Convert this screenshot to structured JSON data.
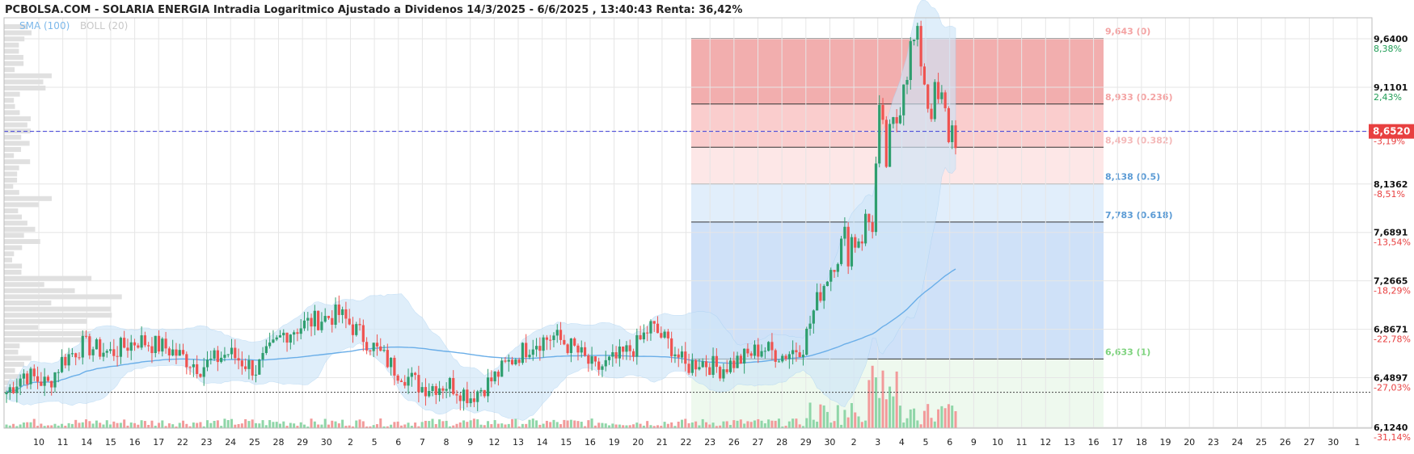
{
  "header": {
    "title": "PCBOLSA.COM - SOLARIA ENERGIA Intradia Logaritmico Ajustado a Dividenos 14/3/2025 - 6/6/2025 , 13:40:43 Renta: 36,42%",
    "legend_sma": "SMA (100)",
    "legend_boll": "BOLL (20)"
  },
  "colors": {
    "up": "#2e9e6e",
    "down": "#ef5350",
    "sma": "#6aaee8",
    "boll_fill": "#cfe6f8",
    "grid": "#e6e6e6",
    "last_price": "#e84040"
  },
  "chart_data": {
    "type": "candlestick",
    "scale": "log",
    "ylim": [
      6.05,
      9.72
    ],
    "x_labels": [
      "10",
      "11",
      "14",
      "15",
      "16",
      "17",
      "22",
      "23",
      "24",
      "25",
      "28",
      "29",
      "30",
      "2",
      "5",
      "6",
      "7",
      "8",
      "9",
      "12",
      "13",
      "14",
      "15",
      "16",
      "19",
      "20",
      "21",
      "22",
      "23",
      "26",
      "27",
      "28",
      "29",
      "30",
      "2",
      "3",
      "4",
      "5",
      "6",
      "9",
      "10",
      "11",
      "12",
      "13",
      "16",
      "17",
      "18",
      "19",
      "20",
      "23",
      "24",
      "25",
      "26",
      "27",
      "30",
      "1"
    ],
    "price_ticks": [
      {
        "price": 9.64,
        "label": "9,6400",
        "pct": "8,38%",
        "pct_color": "#1f9d55"
      },
      {
        "price": 9.1101,
        "label": "9,1101",
        "pct": "2,43%",
        "pct_color": "#1f9d55"
      },
      {
        "price": 8.652,
        "label": "",
        "pct": "-3,19%",
        "pct_color": "#e84040"
      },
      {
        "price": 8.1362,
        "label": "8,1362",
        "pct": "-8,51%",
        "pct_color": "#e84040"
      },
      {
        "price": 7.6891,
        "label": "7,6891",
        "pct": "-13,54%",
        "pct_color": "#e84040"
      },
      {
        "price": 7.2665,
        "label": "7,2665",
        "pct": "-18,29%",
        "pct_color": "#e84040"
      },
      {
        "price": 6.8671,
        "label": "6,8671",
        "pct": "-22,78%",
        "pct_color": "#e84040"
      },
      {
        "price": 6.4897,
        "label": "6,4897",
        "pct": "-27,03%",
        "pct_color": "#e84040"
      },
      {
        "price": 6.124,
        "label": "6,1240",
        "pct": "-31,14%",
        "pct_color": "#e84040"
      }
    ],
    "last_price": 8.652,
    "last_price_label": "8,6520",
    "reference_price": 6.38,
    "fibonacci": {
      "levels": [
        {
          "price": 9.643,
          "label": "9,643 (0)",
          "color": "#f4a3a3"
        },
        {
          "price": 8.933,
          "label": "8,933 (0.236)",
          "color": "#f4a3a3"
        },
        {
          "price": 8.493,
          "label": "8,493 (0.382)",
          "color": "#f4b8b8"
        },
        {
          "price": 8.138,
          "label": "8,138 (0.5)",
          "color": "#5b9bd5"
        },
        {
          "price": 7.783,
          "label": "7,783 (0.618)",
          "color": "#5b9bd5"
        },
        {
          "price": 6.633,
          "label": "6,633 (1)",
          "color": "#7ed37e"
        }
      ]
    },
    "anchors": [
      {
        "i": 0,
        "p": 6.38
      },
      {
        "i": 5,
        "p": 6.52
      },
      {
        "i": 12,
        "p": 6.44
      },
      {
        "i": 16,
        "p": 6.62
      },
      {
        "i": 22,
        "p": 6.74
      },
      {
        "i": 30,
        "p": 6.68
      },
      {
        "i": 38,
        "p": 6.78
      },
      {
        "i": 46,
        "p": 6.72
      },
      {
        "i": 56,
        "p": 6.57
      },
      {
        "i": 64,
        "p": 6.68
      },
      {
        "i": 72,
        "p": 6.55
      },
      {
        "i": 80,
        "p": 6.83
      },
      {
        "i": 88,
        "p": 6.93
      },
      {
        "i": 96,
        "p": 6.99
      },
      {
        "i": 104,
        "p": 6.78
      },
      {
        "i": 112,
        "p": 6.56
      },
      {
        "i": 120,
        "p": 6.42
      },
      {
        "i": 128,
        "p": 6.44
      },
      {
        "i": 134,
        "p": 6.35
      },
      {
        "i": 140,
        "p": 6.47
      },
      {
        "i": 146,
        "p": 6.63
      },
      {
        "i": 152,
        "p": 6.76
      },
      {
        "i": 158,
        "p": 6.81
      },
      {
        "i": 164,
        "p": 6.71
      },
      {
        "i": 170,
        "p": 6.55
      },
      {
        "i": 176,
        "p": 6.63
      },
      {
        "i": 182,
        "p": 6.74
      },
      {
        "i": 186,
        "p": 6.89
      },
      {
        "i": 192,
        "p": 6.73
      },
      {
        "i": 196,
        "p": 6.57
      },
      {
        "i": 200,
        "p": 6.62
      },
      {
        "i": 206,
        "p": 6.56
      },
      {
        "i": 212,
        "p": 6.63
      },
      {
        "i": 218,
        "p": 6.72
      },
      {
        "i": 224,
        "p": 6.66
      },
      {
        "i": 230,
        "p": 6.74
      },
      {
        "i": 234,
        "p": 7.1
      },
      {
        "i": 238,
        "p": 7.38
      },
      {
        "i": 242,
        "p": 7.58
      },
      {
        "i": 246,
        "p": 7.68
      },
      {
        "i": 250,
        "p": 7.82
      },
      {
        "i": 252,
        "p": 8.72
      },
      {
        "i": 254,
        "p": 8.36
      },
      {
        "i": 257,
        "p": 8.78
      },
      {
        "i": 259,
        "p": 9.3
      },
      {
        "i": 262,
        "p": 9.58
      },
      {
        "i": 264,
        "p": 9.46
      },
      {
        "i": 266,
        "p": 8.98
      },
      {
        "i": 270,
        "p": 8.9
      },
      {
        "i": 272,
        "p": 8.66
      }
    ],
    "seed": 7
  }
}
